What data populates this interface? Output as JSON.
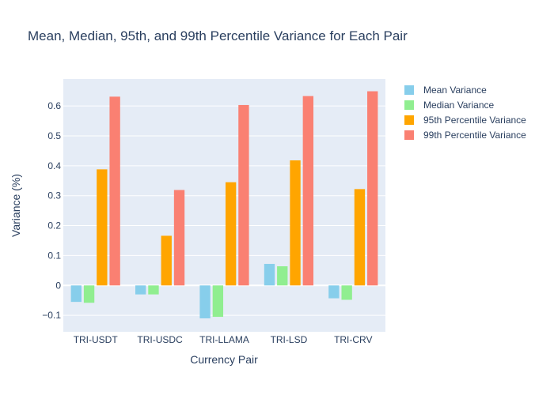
{
  "chart_data": {
    "type": "bar",
    "title": "Mean, Median, 95th, and 99th Percentile Variance for Each Pair",
    "xlabel": "Currency Pair",
    "ylabel": "Variance (%)",
    "ylim": [
      -0.155,
      0.69
    ],
    "yticks": [
      -0.1,
      0,
      0.1,
      0.2,
      0.3,
      0.4,
      0.5,
      0.6
    ],
    "ytick_labels": [
      "−0.1",
      "0",
      "0.1",
      "0.2",
      "0.3",
      "0.4",
      "0.5",
      "0.6"
    ],
    "grid": true,
    "legend_position": "top-right-outside",
    "categories": [
      "TRI-USDT",
      "TRI-USDC",
      "TRI-LLAMA",
      "TRI-LSD",
      "TRI-CRV"
    ],
    "series": [
      {
        "name": "Mean Variance",
        "color": "#87ceeb",
        "values": [
          -0.055,
          -0.03,
          -0.11,
          0.072,
          -0.043
        ]
      },
      {
        "name": "Median Variance",
        "color": "#90ee90",
        "values": [
          -0.058,
          -0.03,
          -0.105,
          0.064,
          -0.048
        ]
      },
      {
        "name": "95th Percentile Variance",
        "color": "#ffa500",
        "values": [
          0.388,
          0.166,
          0.345,
          0.418,
          0.322
        ]
      },
      {
        "name": "99th Percentile Variance",
        "color": "#fa8072",
        "values": [
          0.631,
          0.319,
          0.603,
          0.633,
          0.649
        ]
      }
    ],
    "plot_background": "#e5ecf6",
    "text_color": "#2a3f5f"
  }
}
